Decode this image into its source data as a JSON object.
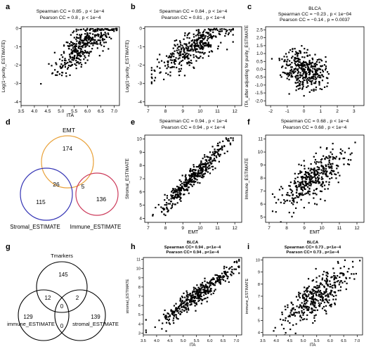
{
  "panel_labels": {
    "a": "a",
    "b": "b",
    "c": "c",
    "d": "d",
    "e": "e",
    "f": "f",
    "g": "g",
    "h": "h",
    "i": "i"
  },
  "chart_data": [
    {
      "id": "a",
      "type": "scatter",
      "stats": [
        "Spearman CC = 0.85 ,  p < 1e−4",
        "Pearson CC = 0.8 ,  p < 1e−4"
      ],
      "xlabel": "ITA",
      "ylabel": "Log(1−purity_ESTIMATE)",
      "xlim": [
        3.5,
        7.2
      ],
      "ylim": [
        -4.2,
        0.1
      ],
      "xticks": [
        3.5,
        4.0,
        4.5,
        5.0,
        5.5,
        6.0,
        6.5,
        7.0
      ],
      "yticks": [
        -4,
        -3,
        -2,
        -1,
        0
      ],
      "seed": 11,
      "n": 380,
      "xdist": [
        5.9,
        0.55,
        3.8,
        7.1
      ],
      "slope": 1.05,
      "xref": 5.9,
      "yref": -0.85,
      "noise": 0.48,
      "ytop": 0.0
    },
    {
      "id": "b",
      "type": "scatter",
      "stats": [
        "Spearman CC = 0.84 ,  p < 1e−4",
        "Pearson CC = 0.81 ,  p < 1e−4"
      ],
      "xlabel": "",
      "ylabel": "Log(1−purity_ESTIMATE)",
      "xlim": [
        6.8,
        12.4
      ],
      "ylim": [
        -4.2,
        0.1
      ],
      "xticks": [
        7,
        8,
        9,
        10,
        11,
        12
      ],
      "yticks": [
        -4,
        -3,
        -2,
        -1,
        0
      ],
      "seed": 23,
      "n": 380,
      "xdist": [
        9.6,
        1.0,
        7.2,
        11.9
      ],
      "slope": 0.55,
      "xref": 9.6,
      "yref": -1.05,
      "noise": 0.42,
      "ytop": 0.0
    },
    {
      "id": "c",
      "type": "scatter",
      "stats": [
        "BLCA",
        "Spearman CC = −0.23 ,  p < 1e−04",
        "Pearson CC = −0.14 ,  p = 0.0037"
      ],
      "xlabel": "",
      "ylabel": "ITA_after adjusting for purity_ESTIMATE",
      "xlim": [
        -2.3,
        3.6
      ],
      "ylim": [
        -2.3,
        2.7
      ],
      "xticks": [
        -2,
        -1,
        0,
        1,
        2,
        3
      ],
      "yticks": [
        -2.0,
        -1.5,
        -1.0,
        -0.5,
        0.0,
        0.5,
        1.0,
        1.5,
        2.0,
        2.5
      ],
      "seed": 37,
      "n": 360,
      "xdist": [
        0,
        0.62,
        -2.1,
        3.3
      ],
      "slope": -0.22,
      "xref": 0,
      "yref": 0.0,
      "noise": 0.6,
      "ytop": 2.4
    },
    {
      "id": "e",
      "type": "scatter",
      "stats": [
        "Spearman CC = 0.94 ,  p < 1e−4",
        "Pearson CC = 0.94 ,  p < 1e−4"
      ],
      "xlabel": "EMT",
      "ylabel": "Stromal_ESTIMATE",
      "xlim": [
        6.8,
        12.4
      ],
      "ylim": [
        3.7,
        10.3
      ],
      "xticks": [
        7,
        8,
        9,
        10,
        11,
        12
      ],
      "yticks": [
        4,
        5,
        6,
        7,
        8,
        9,
        10
      ],
      "seed": 41,
      "n": 400,
      "xdist": [
        9.6,
        1.0,
        7.2,
        11.9
      ],
      "slope": 1.3,
      "xref": 9.6,
      "yref": 7.1,
      "noise": 0.38,
      "ytop": 10.1
    },
    {
      "id": "f",
      "type": "scatter",
      "stats": [
        "Spearman CC = 0.68 ,  p < 1e−4",
        "Pearson CC = 0.68 ,  p < 1e−4"
      ],
      "xlabel": "EMT",
      "ylabel": "Immune_ESTIMATE",
      "xlim": [
        6.8,
        12.4
      ],
      "ylim": [
        4.6,
        11.3
      ],
      "xticks": [
        7,
        8,
        9,
        10,
        11,
        12
      ],
      "yticks": [
        5,
        6,
        7,
        8,
        9,
        10,
        11
      ],
      "seed": 53,
      "n": 380,
      "xdist": [
        9.6,
        1.0,
        7.2,
        11.9
      ],
      "slope": 0.9,
      "xref": 9.6,
      "yref": 8.0,
      "noise": 0.75,
      "ytop": 11.0
    },
    {
      "id": "h",
      "type": "scatter",
      "stats": [
        "BLCA",
        "Spearman CC= 0.94 ,  p<1e−4",
        "Pearson CC= 0.94 ,  p<1e−4"
      ],
      "xlabel": "ITA",
      "ylabel": "stromal_ESTIMATE",
      "xlim": [
        3.5,
        7.2
      ],
      "ylim": [
        2.8,
        11.2
      ],
      "xticks": [
        3.5,
        4.0,
        4.5,
        5.0,
        5.5,
        6.0,
        6.5,
        7.0
      ],
      "yticks": [
        3,
        4,
        5,
        6,
        7,
        8,
        9,
        10,
        11
      ],
      "seed": 67,
      "n": 400,
      "xdist": [
        5.5,
        0.65,
        3.6,
        7.1
      ],
      "slope": 2.1,
      "xref": 5.5,
      "yref": 7.0,
      "noise": 0.5,
      "ytop": 11.0
    },
    {
      "id": "i",
      "type": "scatter",
      "stats": [
        "BLCA",
        "Spearman CC= 0.73 ,  p<1e−4",
        "Pearson CC= 0.73 ,  p<1e−4"
      ],
      "xlabel": "ITA",
      "ylabel": "immune_ESTIMATE",
      "xlim": [
        3.5,
        7.2
      ],
      "ylim": [
        3.8,
        10.2
      ],
      "xticks": [
        3.5,
        4.0,
        4.5,
        5.0,
        5.5,
        6.0,
        6.5,
        7.0
      ],
      "yticks": [
        4,
        5,
        6,
        7,
        8,
        9,
        10
      ],
      "seed": 79,
      "n": 380,
      "xdist": [
        5.5,
        0.65,
        3.6,
        7.1
      ],
      "slope": 1.4,
      "xref": 5.5,
      "yref": 7.0,
      "noise": 0.8,
      "ytop": 10.0
    }
  ],
  "venn_d": {
    "sets": [
      "EMT",
      "Stromal_ESTIMATE",
      "Immune_ESTIMATE"
    ],
    "colors": [
      "#e9a23b",
      "#3535b5",
      "#cc3a5a"
    ],
    "counts": {
      "emt_only": "174",
      "stromal_only": "115",
      "immune_only": "136",
      "emt_stromal": "26",
      "emt_immune": "5"
    }
  },
  "venn_g": {
    "sets": [
      "Tmarkers",
      "immune_ESTIMATE",
      "stromal_ESTIMATE"
    ],
    "counts": {
      "t_only": "145",
      "immune_only": "129",
      "stromal_only": "139",
      "t_immune": "12",
      "t_stromal": "2",
      "immune_stromal": "0",
      "all": "0"
    }
  }
}
